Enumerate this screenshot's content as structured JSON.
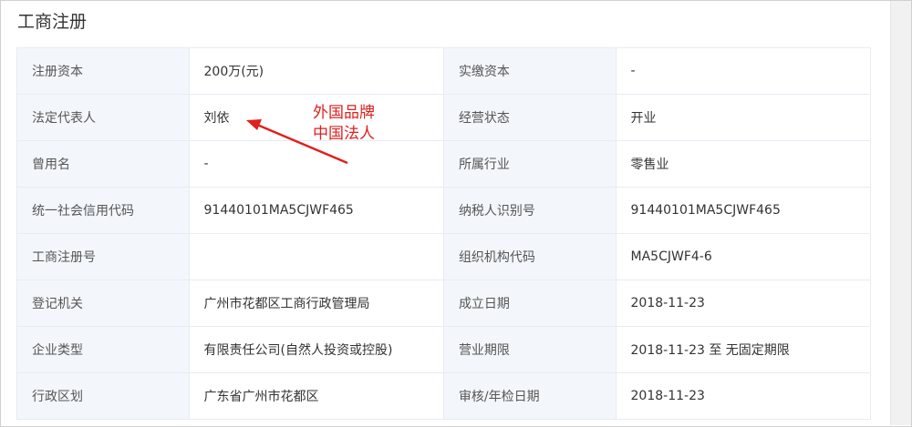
{
  "title": "工商注册",
  "rows": [
    {
      "l1": "注册资本",
      "v1": "200万(元)",
      "l2": "实缴资本",
      "v2": "-"
    },
    {
      "l1": "法定代表人",
      "v1": "刘依",
      "l2": "经营状态",
      "v2": "开业"
    },
    {
      "l1": "曾用名",
      "v1": "-",
      "l2": "所属行业",
      "v2": "零售业"
    },
    {
      "l1": "统一社会信用代码",
      "v1": "91440101MA5CJWF465",
      "l2": "纳税人识别号",
      "v2": "91440101MA5CJWF465"
    },
    {
      "l1": "工商注册号",
      "v1": "",
      "l2": "组织机构代码",
      "v2": "MA5CJWF4-6"
    },
    {
      "l1": "登记机关",
      "v1": "广州市花都区工商行政管理局",
      "l2": "成立日期",
      "v2": "2018-11-23"
    },
    {
      "l1": "企业类型",
      "v1": "有限责任公司(自然人投资或控股)",
      "l2": "营业期限",
      "v2": "2018-11-23 至 无固定期限"
    },
    {
      "l1": "行政区划",
      "v1": "广东省广州市花都区",
      "l2": "审核/年检日期",
      "v2": "2018-11-23"
    }
  ],
  "annotation": {
    "line1": "外国品牌",
    "line2": "中国法人",
    "color": "#e0201e"
  }
}
